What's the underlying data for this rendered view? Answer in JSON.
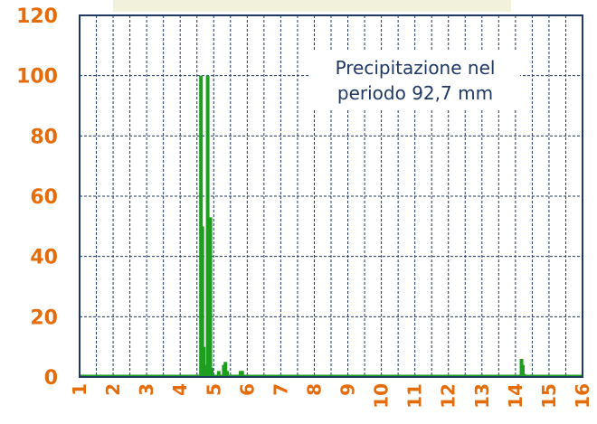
{
  "chart_data": {
    "type": "bar",
    "annotation": [
      "Precipitazione nel",
      "periodo 92,7 mm"
    ],
    "ylim": [
      0,
      120
    ],
    "yticks": [
      0,
      20,
      40,
      60,
      80,
      100,
      120
    ],
    "xlim": [
      1,
      16
    ],
    "xticks": [
      1,
      2,
      3,
      4,
      5,
      6,
      7,
      8,
      9,
      10,
      11,
      12,
      13,
      14,
      15,
      16
    ],
    "grid": true,
    "series": [
      {
        "color": "#1e9e1e",
        "x": [
          4.62,
          4.66,
          4.7,
          4.74,
          4.78,
          4.82,
          4.86,
          4.9,
          4.94,
          5.15,
          5.3,
          5.35,
          5.4,
          5.8,
          5.85,
          14.18,
          14.22,
          14.26
        ],
        "values": [
          100,
          50,
          10,
          4,
          3,
          100,
          4,
          53,
          3,
          2,
          4,
          5,
          2,
          2,
          2,
          6,
          4,
          1
        ]
      }
    ],
    "colors": {
      "axis": "#1f3864",
      "grid": "#1f3864",
      "tick_text": "#e46c0a",
      "title_box": "#f2f2dc"
    }
  }
}
